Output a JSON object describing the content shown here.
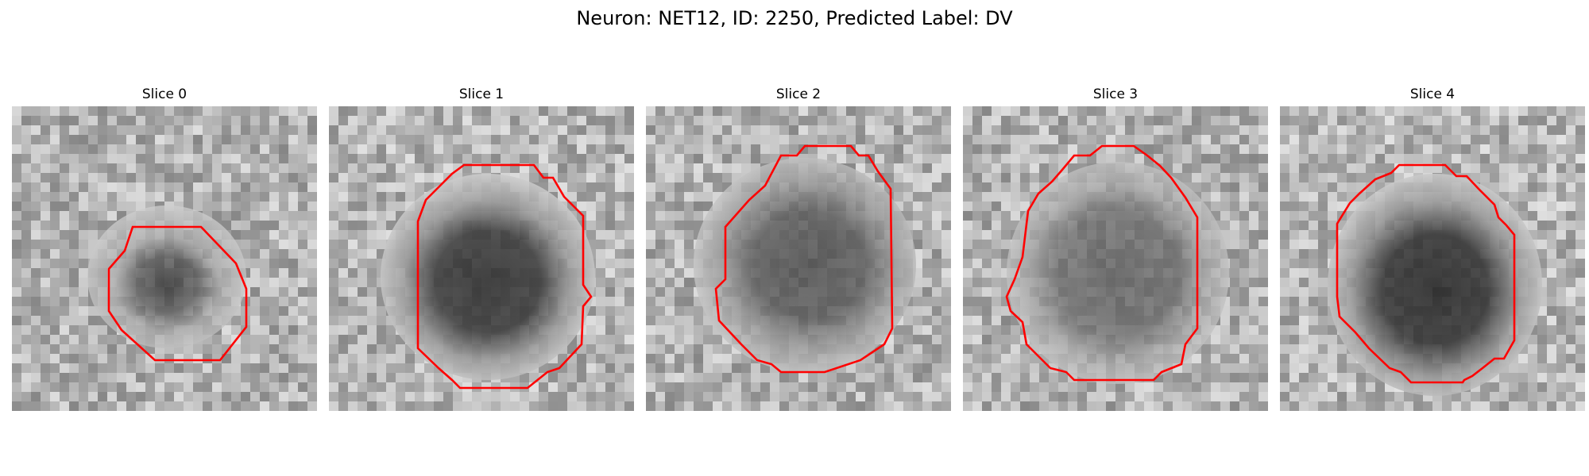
{
  "figure": {
    "title": "Neuron: NET12, ID: 2250, Predicted Label: DV",
    "contour_color": "#ff0000",
    "colormap": "gray"
  },
  "panels": [
    {
      "title": "Slice 0"
    },
    {
      "title": "Slice 1"
    },
    {
      "title": "Slice 2"
    },
    {
      "title": "Slice 3"
    },
    {
      "title": "Slice 4"
    }
  ]
}
